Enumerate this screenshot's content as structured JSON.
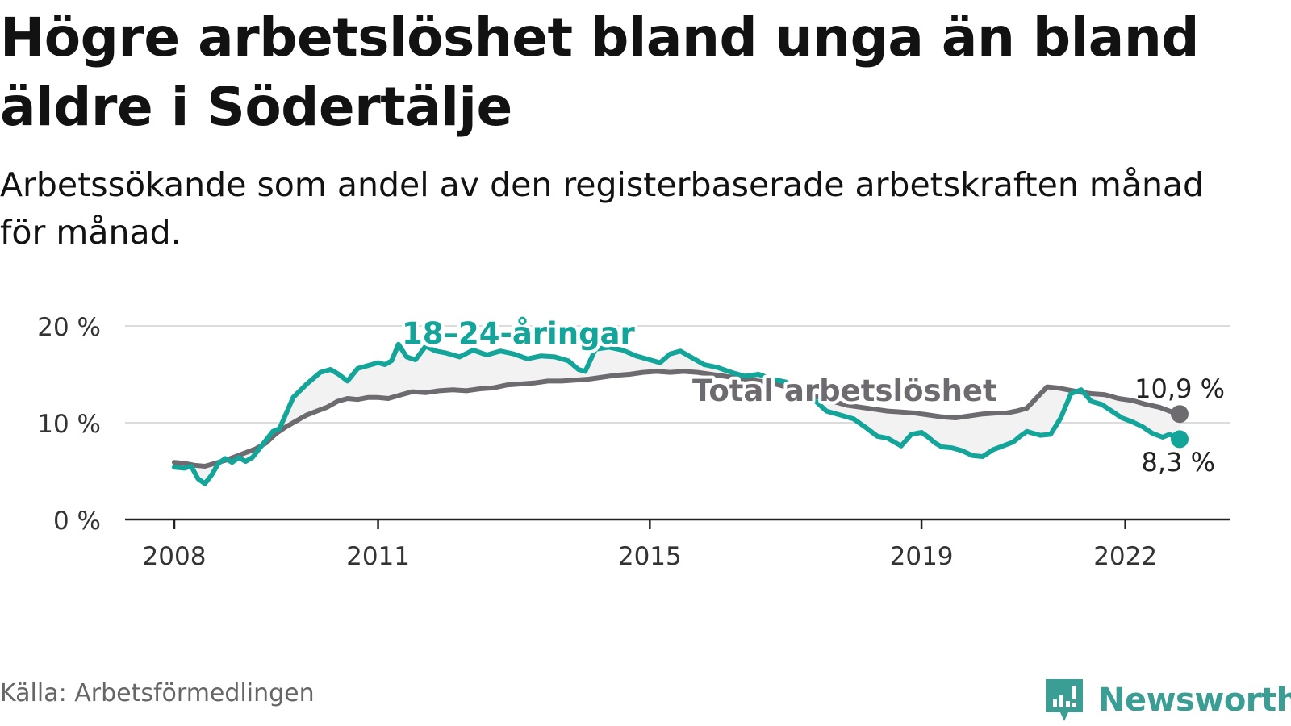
{
  "header": {
    "title": "Högre arbetslöshet bland unga än bland äldre i Södertälje",
    "subtitle": "Arbetssökande som andel av den registerbaserade arbetskraften månad för månad."
  },
  "footer": {
    "source": "Källa: Arbetsförmedlingen",
    "brand": "Newsworthy"
  },
  "chart_data": {
    "type": "line",
    "title": "Högre arbetslöshet bland unga än bland äldre i Södertälje",
    "subtitle": "Arbetssökande som andel av den registerbaserade arbetskraften månad för månad.",
    "xlabel": "",
    "ylabel": "",
    "xlim": [
      2008.0,
      2022.8
    ],
    "ylim": [
      0,
      20
    ],
    "x_ticks": [
      2008,
      2011,
      2015,
      2019,
      2022
    ],
    "x_tick_labels": [
      "2008",
      "2011",
      "2015",
      "2019",
      "2022"
    ],
    "y_ticks": [
      0,
      10,
      20
    ],
    "y_tick_labels": [
      "0 %",
      "10 %",
      "20 %"
    ],
    "grid": true,
    "legend": "inline labels",
    "colors": {
      "youth": "#14a59a",
      "total": "#6e6b70",
      "gap_fill": "#f2f2f2",
      "axis": "#222222",
      "grid": "#dcdcdc"
    },
    "series": [
      {
        "name": "18–24-åringar",
        "label": "18–24-åringar",
        "color": "#14a59a",
        "end_label": "8,3 %",
        "x": [
          2008.0,
          2008.15,
          2008.25,
          2008.35,
          2008.45,
          2008.55,
          2008.65,
          2008.75,
          2008.85,
          2008.95,
          2009.05,
          2009.15,
          2009.25,
          2009.35,
          2009.45,
          2009.55,
          2009.65,
          2009.75,
          2009.85,
          2009.95,
          2010.05,
          2010.15,
          2010.3,
          2010.42,
          2010.55,
          2010.7,
          2010.85,
          2011.0,
          2011.1,
          2011.2,
          2011.3,
          2011.42,
          2011.55,
          2011.7,
          2011.85,
          2012.0,
          2012.2,
          2012.4,
          2012.6,
          2012.8,
          2013.0,
          2013.2,
          2013.4,
          2013.6,
          2013.8,
          2013.95,
          2014.05,
          2014.2,
          2014.4,
          2014.6,
          2014.8,
          2015.0,
          2015.15,
          2015.3,
          2015.45,
          2015.6,
          2015.8,
          2016.0,
          2016.2,
          2016.4,
          2016.6,
          2016.8,
          2017.0,
          2017.2,
          2017.4,
          2017.6,
          2017.8,
          2018.0,
          2018.2,
          2018.35,
          2018.5,
          2018.6,
          2018.7,
          2018.85,
          2019.0,
          2019.1,
          2019.2,
          2019.3,
          2019.45,
          2019.6,
          2019.75,
          2019.9,
          2020.05,
          2020.2,
          2020.35,
          2020.45,
          2020.55,
          2020.65,
          2020.75,
          2020.9,
          2021.05,
          2021.2,
          2021.35,
          2021.5,
          2021.65,
          2021.8,
          2021.95,
          2022.1,
          2022.25,
          2022.4,
          2022.55,
          2022.65,
          2022.8
        ],
        "y": [
          5.4,
          5.3,
          5.5,
          4.2,
          3.7,
          4.6,
          5.8,
          6.3,
          5.9,
          6.4,
          6.0,
          6.4,
          7.3,
          8.2,
          9.1,
          9.4,
          11.0,
          12.6,
          13.3,
          14.0,
          14.6,
          15.2,
          15.5,
          15.0,
          14.3,
          15.6,
          15.9,
          16.2,
          16.0,
          16.4,
          18.1,
          16.8,
          16.5,
          17.9,
          17.4,
          17.2,
          16.8,
          17.5,
          17.0,
          17.4,
          17.1,
          16.6,
          16.9,
          16.8,
          16.4,
          15.5,
          15.3,
          17.6,
          17.8,
          17.5,
          16.9,
          16.5,
          16.2,
          17.1,
          17.4,
          16.8,
          16.0,
          15.7,
          15.2,
          14.8,
          15.0,
          14.5,
          14.2,
          13.4,
          12.5,
          11.2,
          10.8,
          10.4,
          9.4,
          8.6,
          8.4,
          8.0,
          7.6,
          8.8,
          9.0,
          8.5,
          7.9,
          7.5,
          7.4,
          7.1,
          6.6,
          6.5,
          7.2,
          7.6,
          8.0,
          8.6,
          9.1,
          8.9,
          8.7,
          8.8,
          10.5,
          13.0,
          13.4,
          12.2,
          11.9,
          11.2,
          10.5,
          10.1,
          9.6,
          8.9,
          8.5,
          8.8,
          8.3
        ]
      },
      {
        "name": "Total arbetslöshet",
        "label": "Total arbetslöshet",
        "color": "#6e6b70",
        "end_label": "10,9 %",
        "x": [
          2008.0,
          2008.15,
          2008.3,
          2008.45,
          2008.6,
          2008.75,
          2008.9,
          2009.05,
          2009.2,
          2009.35,
          2009.5,
          2009.65,
          2009.8,
          2009.95,
          2010.1,
          2010.25,
          2010.4,
          2010.55,
          2010.7,
          2010.85,
          2011.0,
          2011.15,
          2011.3,
          2011.5,
          2011.7,
          2011.9,
          2012.1,
          2012.3,
          2012.5,
          2012.7,
          2012.9,
          2013.1,
          2013.3,
          2013.5,
          2013.7,
          2013.9,
          2014.1,
          2014.3,
          2014.5,
          2014.7,
          2014.9,
          2015.1,
          2015.3,
          2015.5,
          2015.7,
          2015.9,
          2016.1,
          2016.3,
          2016.5,
          2016.7,
          2016.9,
          2017.1,
          2017.3,
          2017.5,
          2017.7,
          2017.9,
          2018.1,
          2018.3,
          2018.5,
          2018.7,
          2018.9,
          2019.1,
          2019.3,
          2019.5,
          2019.7,
          2019.9,
          2020.1,
          2020.25,
          2020.4,
          2020.55,
          2020.7,
          2020.85,
          2021.0,
          2021.15,
          2021.3,
          2021.5,
          2021.7,
          2021.9,
          2022.1,
          2022.3,
          2022.5,
          2022.65,
          2022.8
        ],
        "y": [
          5.9,
          5.8,
          5.6,
          5.5,
          5.8,
          6.1,
          6.5,
          6.9,
          7.3,
          7.9,
          8.9,
          9.6,
          10.2,
          10.8,
          11.2,
          11.6,
          12.2,
          12.5,
          12.4,
          12.6,
          12.6,
          12.5,
          12.8,
          13.2,
          13.1,
          13.3,
          13.4,
          13.3,
          13.5,
          13.6,
          13.9,
          14.0,
          14.1,
          14.3,
          14.3,
          14.4,
          14.5,
          14.7,
          14.9,
          15.0,
          15.2,
          15.3,
          15.2,
          15.3,
          15.2,
          15.0,
          14.8,
          14.6,
          14.4,
          14.2,
          13.9,
          13.5,
          13.0,
          12.6,
          12.2,
          11.8,
          11.6,
          11.4,
          11.2,
          11.1,
          11.0,
          10.8,
          10.6,
          10.5,
          10.7,
          10.9,
          11.0,
          11.0,
          11.2,
          11.5,
          12.6,
          13.7,
          13.6,
          13.4,
          13.2,
          13.0,
          12.9,
          12.5,
          12.3,
          11.9,
          11.6,
          11.2,
          10.9
        ]
      }
    ]
  }
}
